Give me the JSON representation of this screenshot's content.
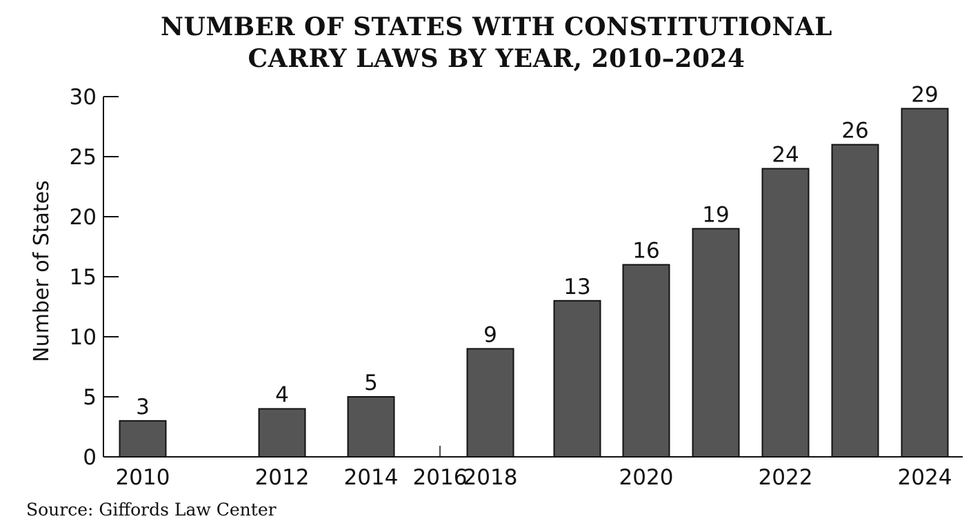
{
  "chart_data": {
    "type": "bar",
    "title_line1": "NUMBER OF STATES WITH CONSTITUTIONAL",
    "title_line2": "CARRY LAWS BY YEAR, 2010–2024",
    "ylabel": "Number of States",
    "xlabel": "",
    "ylim": [
      0,
      30
    ],
    "yticks": [
      0,
      5,
      10,
      15,
      20,
      25,
      30
    ],
    "x_axis_labels": [
      "2010",
      "2012",
      "2014",
      "2016",
      "2018",
      "2020",
      "2022",
      "2024"
    ],
    "bars": [
      {
        "year": 2010,
        "value": 3
      },
      {
        "year": 2012,
        "value": 4
      },
      {
        "year": 2014,
        "value": 5
      },
      {
        "year": 2018,
        "value": 9
      },
      {
        "year": 2019,
        "value": 13
      },
      {
        "year": 2020,
        "value": 16
      },
      {
        "year": 2021,
        "value": 19
      },
      {
        "year": 2022,
        "value": 24
      },
      {
        "year": 2023,
        "value": 26
      },
      {
        "year": 2024,
        "value": 29
      }
    ],
    "bar_color": "#555555",
    "grid": false,
    "source": "Source: Giffords Law Center"
  }
}
